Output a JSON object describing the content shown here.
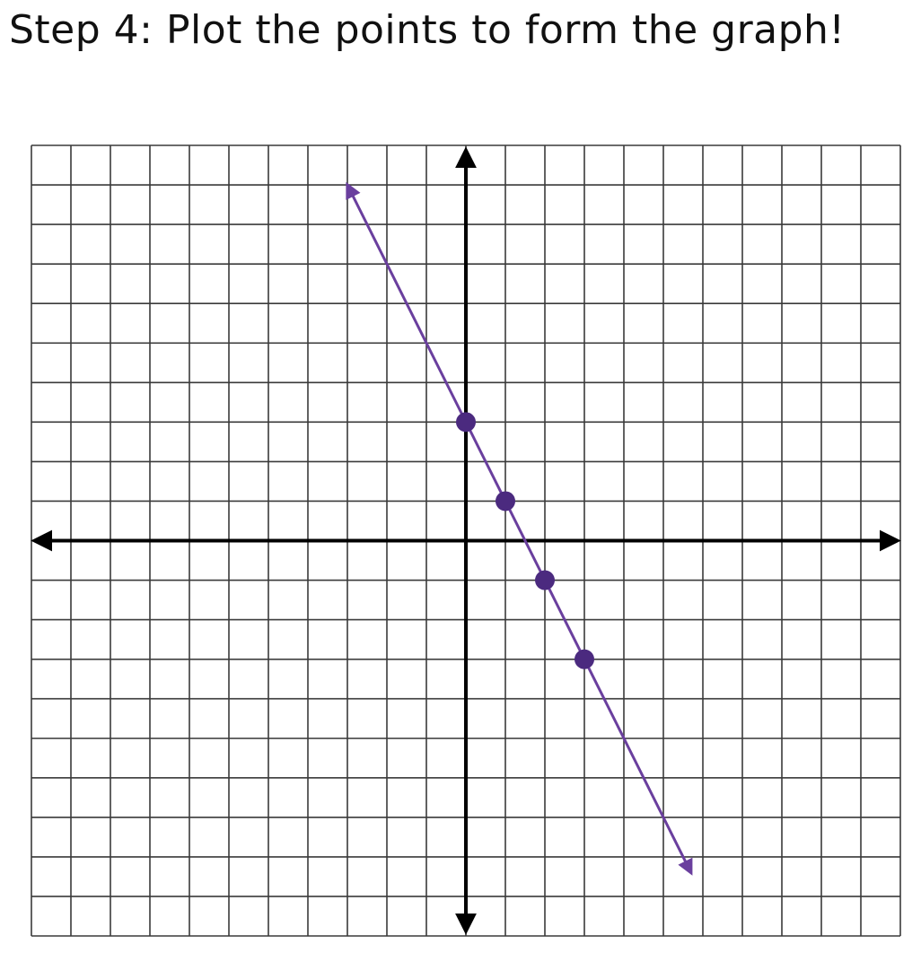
{
  "title": "Step 4: Plot the points to form the graph!",
  "chart_data": {
    "type": "line",
    "title": "Step 4: Plot the points to form the graph!",
    "xlabel": "",
    "ylabel": "",
    "xlim": [
      -11,
      11
    ],
    "ylim": [
      -10,
      10
    ],
    "grid": true,
    "tick_labels_shown": false,
    "line": {
      "color": "#6a3f9e",
      "from": [
        -3,
        9
      ],
      "to": [
        5.7,
        -8.4
      ],
      "arrows_both_ends": true
    },
    "points": {
      "color": "#4b2a7f",
      "x": [
        0,
        1,
        2,
        3
      ],
      "y": [
        3,
        1,
        -1,
        -3
      ]
    }
  }
}
